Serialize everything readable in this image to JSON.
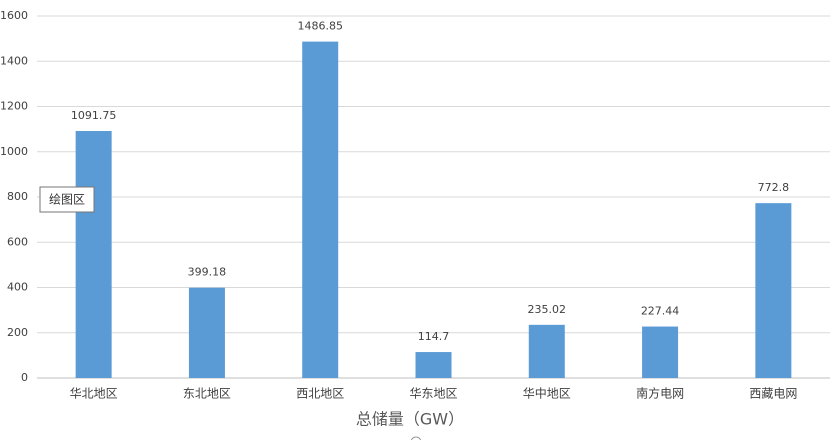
{
  "chart_data": {
    "type": "bar",
    "x_label": "总储量（GW）",
    "tooltip": "绘图区",
    "categories": [
      "华北地区",
      "东北地区",
      "西北地区",
      "华东地区",
      "华中地区",
      "南方电网",
      "西藏电网"
    ],
    "values": [
      1091.75,
      399.18,
      1486.85,
      114.7,
      235.02,
      227.44,
      772.8
    ],
    "color": "#5b9bd5",
    "ylim": [
      0,
      1600
    ],
    "yticks": [
      0,
      200,
      400,
      600,
      800,
      1000,
      1200,
      1400,
      1600
    ],
    "grid": true
  }
}
